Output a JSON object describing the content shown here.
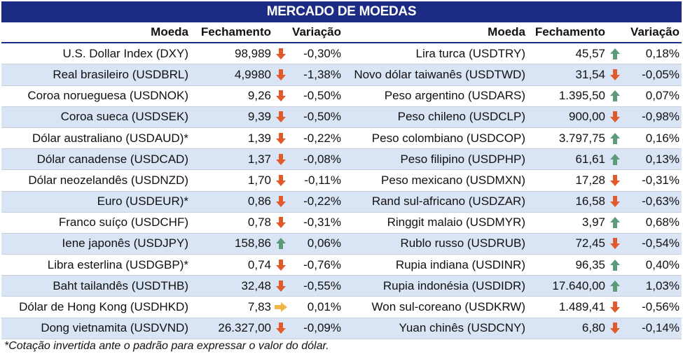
{
  "title": "MERCADO DE MOEDAS",
  "headers": {
    "currency": "Moeda",
    "close": "Fechamento",
    "change": "Variação"
  },
  "colors": {
    "header_bg": "#1c2c84",
    "row_alt": "#d9e4f4",
    "down": "#e05a2b",
    "up": "#5c9a78",
    "flat": "#f0b646"
  },
  "left": [
    {
      "name": "U.S. Dollar Index (DXY)",
      "close": "98,989",
      "dir": "down",
      "change": "-0,30%"
    },
    {
      "name": "Real brasileiro (USDBRL)",
      "close": "4,9980",
      "dir": "down",
      "change": "-1,38%"
    },
    {
      "name": "Coroa norueguesa (USDNOK)",
      "close": "9,26",
      "dir": "down",
      "change": "-0,50%"
    },
    {
      "name": "Coroa sueca (USDSEK)",
      "close": "9,39",
      "dir": "down",
      "change": "-0,50%"
    },
    {
      "name": "Dólar australiano (USDAUD)*",
      "close": "1,39",
      "dir": "down",
      "change": "-0,22%"
    },
    {
      "name": "Dólar canadense (USDCAD)",
      "close": "1,37",
      "dir": "down",
      "change": "-0,08%"
    },
    {
      "name": "Dólar neozelandês (USDNZD)",
      "close": "1,70",
      "dir": "down",
      "change": "-0,11%"
    },
    {
      "name": "Euro (USDEUR)*",
      "close": "0,86",
      "dir": "down",
      "change": "-0,22%"
    },
    {
      "name": "Franco suíço (USDCHF)",
      "close": "0,78",
      "dir": "down",
      "change": "-0,31%"
    },
    {
      "name": "Iene japonês (USDJPY)",
      "close": "158,86",
      "dir": "up",
      "change": "0,06%"
    },
    {
      "name": "Libra esterlina (USDGBP)*",
      "close": "0,74",
      "dir": "down",
      "change": "-0,76%"
    },
    {
      "name": "Baht tailandês (USDTHB)",
      "close": "32,48",
      "dir": "down",
      "change": "-0,55%"
    },
    {
      "name": "Dólar de Hong Kong (USDHKD)",
      "close": "7,83",
      "dir": "flat",
      "change": "0,01%"
    },
    {
      "name": "Dong vietnamita (USDVND)",
      "close": "26.327,00",
      "dir": "down",
      "change": "-0,09%"
    }
  ],
  "right": [
    {
      "name": "Lira turca (USDTRY)",
      "close": "45,57",
      "dir": "up",
      "change": "0,18%"
    },
    {
      "name": "Novo dólar taiwanês (USDTWD)",
      "close": "31,54",
      "dir": "down",
      "change": "-0,05%"
    },
    {
      "name": "Peso argentino (USDARS)",
      "close": "1.395,50",
      "dir": "up",
      "change": "0,07%"
    },
    {
      "name": "Peso chileno (USDCLP)",
      "close": "900,00",
      "dir": "down",
      "change": "-0,98%"
    },
    {
      "name": "Peso colombiano (USDCOP)",
      "close": "3.797,75",
      "dir": "up",
      "change": "0,16%"
    },
    {
      "name": "Peso filipino (USDPHP)",
      "close": "61,61",
      "dir": "up",
      "change": "0,13%"
    },
    {
      "name": "Peso mexicano (USDMXN)",
      "close": "17,28",
      "dir": "down",
      "change": "-0,31%"
    },
    {
      "name": "Rand sul-africano (USDZAR)",
      "close": "16,58",
      "dir": "down",
      "change": "-0,63%"
    },
    {
      "name": "Ringgit malaio (USDMYR)",
      "close": "3,97",
      "dir": "up",
      "change": "0,68%"
    },
    {
      "name": "Rublo russo (USDRUB)",
      "close": "72,45",
      "dir": "down",
      "change": "-0,54%"
    },
    {
      "name": "Rupia indiana (USDINR)",
      "close": "96,35",
      "dir": "up",
      "change": "0,40%"
    },
    {
      "name": "Rupia indonésia (USDIDR)",
      "close": "17.640,00",
      "dir": "up",
      "change": "1,03%"
    },
    {
      "name": "Won sul-coreano (USDKRW)",
      "close": "1.489,41",
      "dir": "down",
      "change": "-0,56%"
    },
    {
      "name": "Yuan chinês (USDCNY)",
      "close": "6,80",
      "dir": "down",
      "change": "-0,14%"
    }
  ],
  "footnote": "*Cotação invertida ante o padrão para expressar o valor do dólar."
}
